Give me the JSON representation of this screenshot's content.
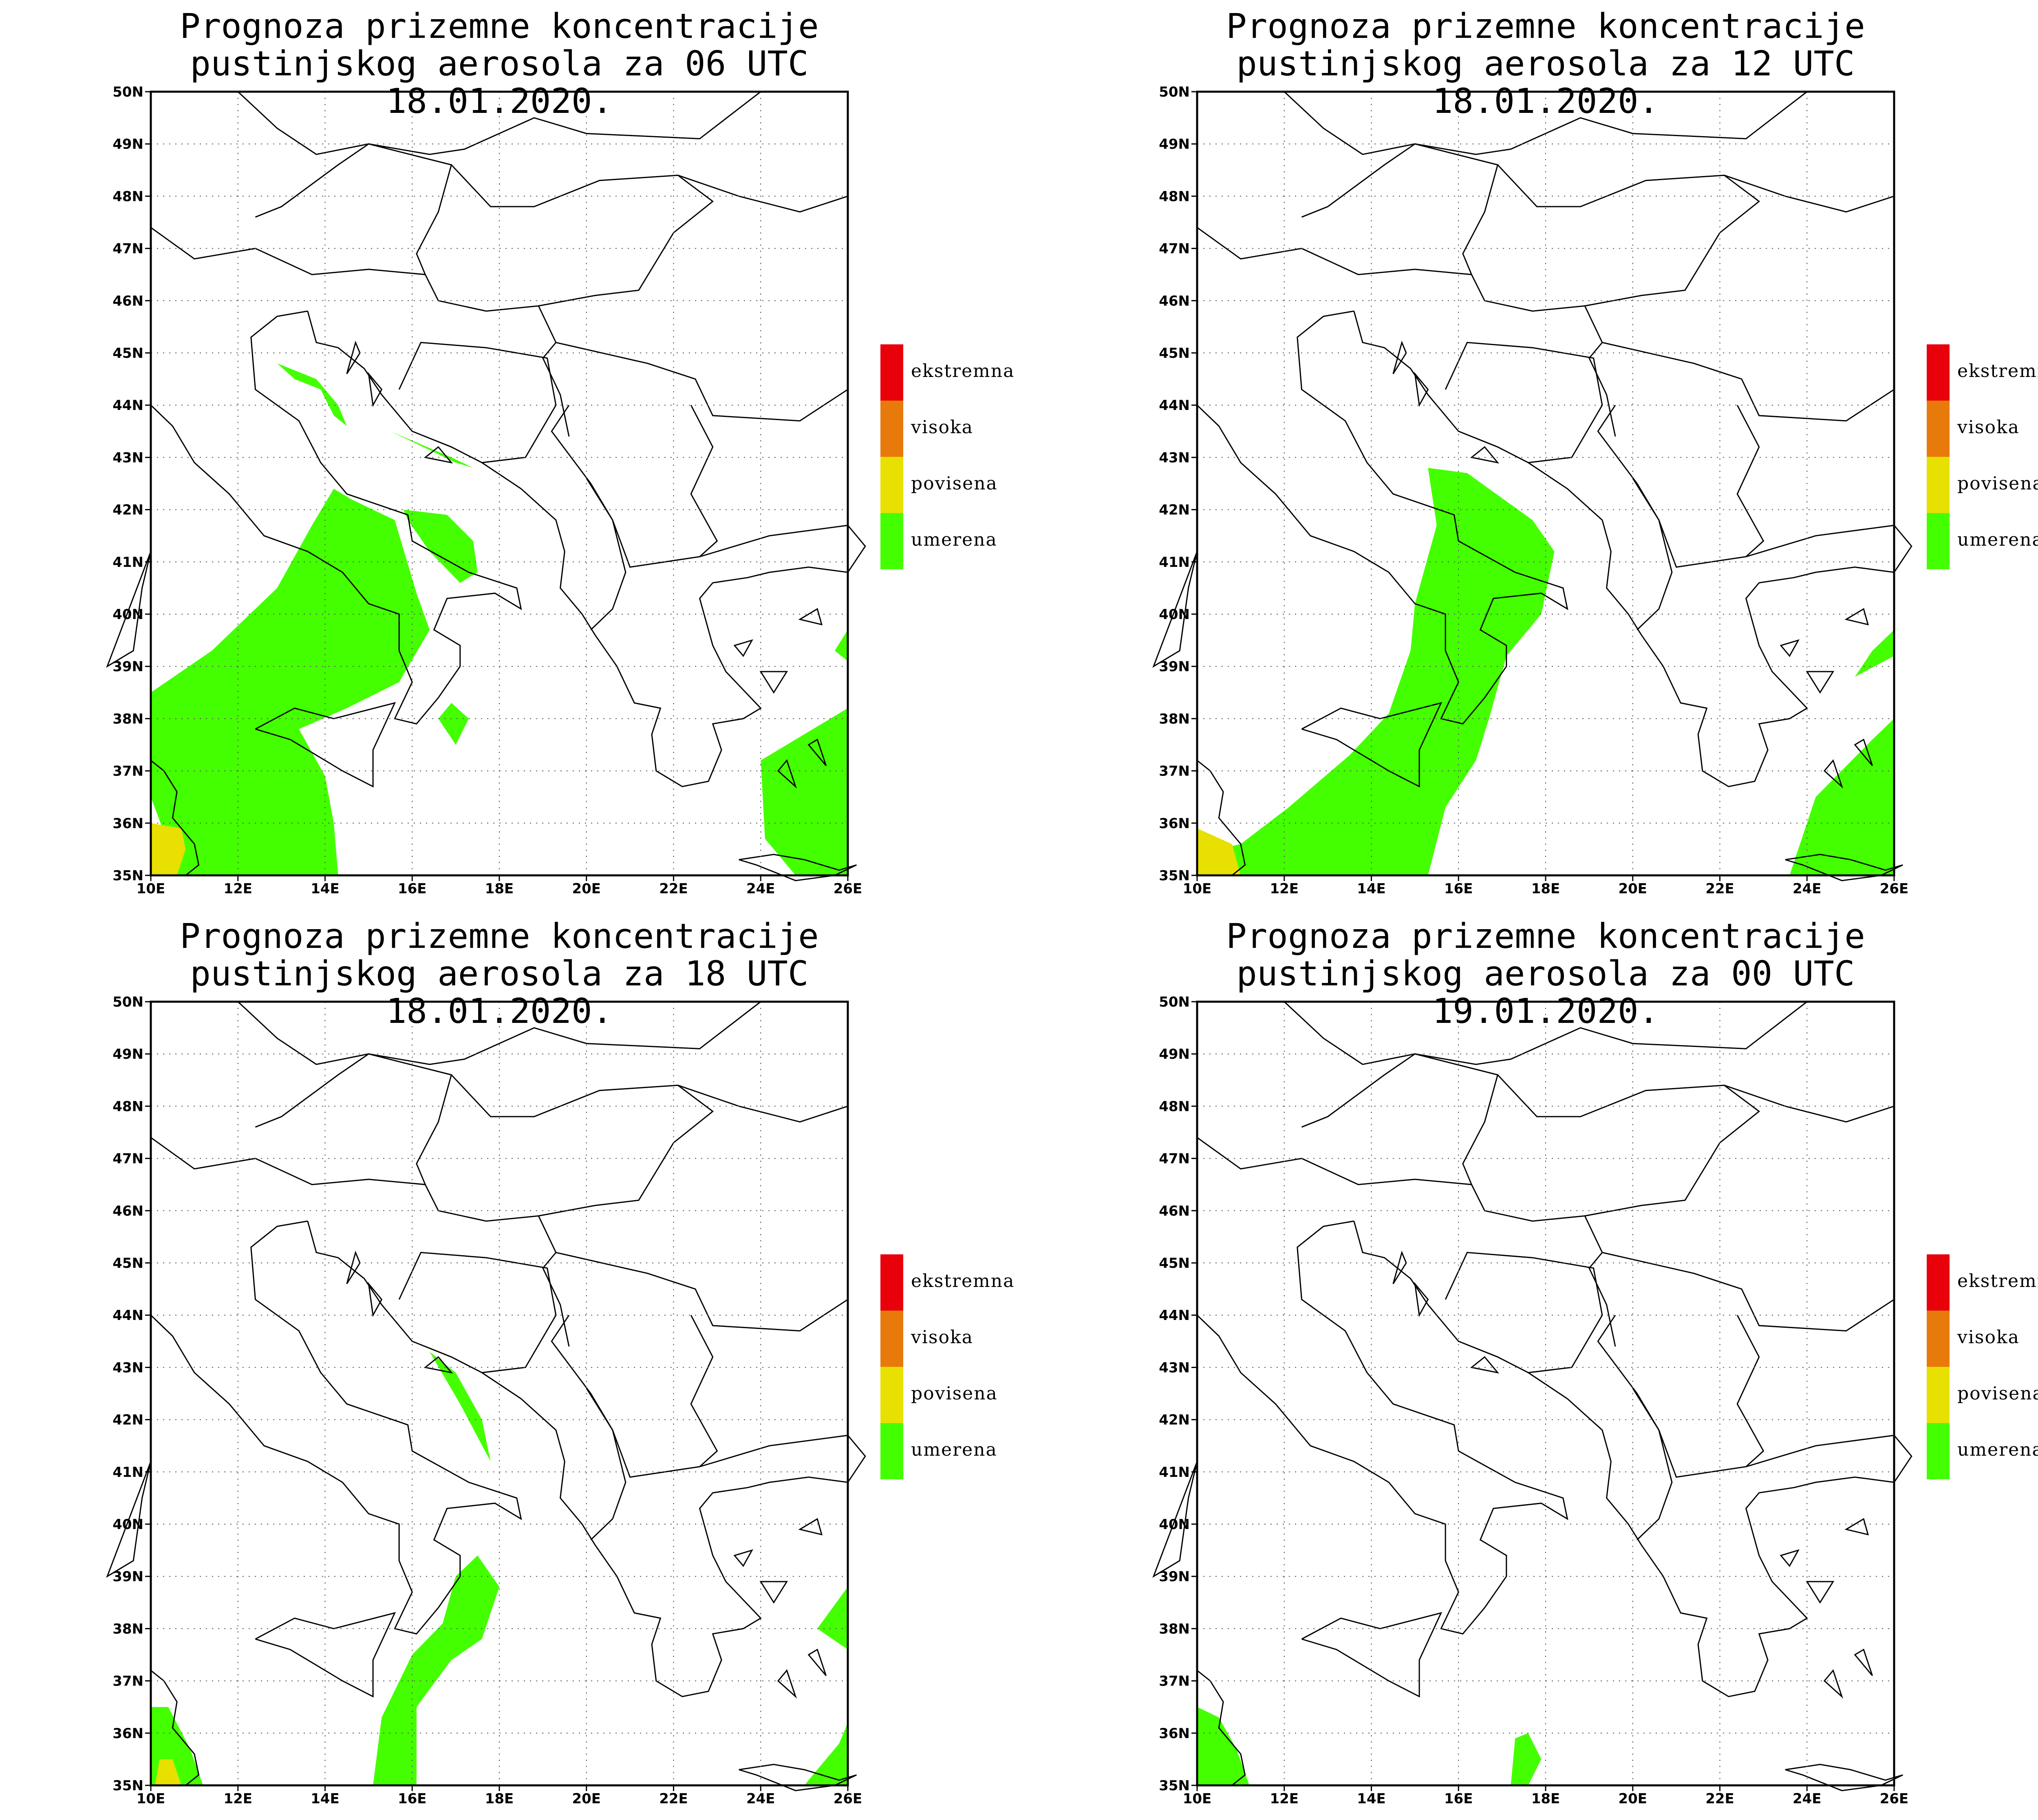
{
  "title_line1": "Prognoza prizemne koncentracije",
  "panels": [
    {
      "title_line2": "pustinjskog aerosola za 06 UTC 18.01.2020."
    },
    {
      "title_line2": "pustinjskog aerosola za 12 UTC 18.01.2020."
    },
    {
      "title_line2": "pustinjskog aerosola za 18 UTC 18.01.2020."
    },
    {
      "title_line2": "pustinjskog aerosola za 00 UTC 19.01.2020."
    }
  ],
  "lat_labels": [
    "50N",
    "49N",
    "48N",
    "47N",
    "46N",
    "45N",
    "44N",
    "43N",
    "42N",
    "41N",
    "40N",
    "39N",
    "38N",
    "37N",
    "36N",
    "35N"
  ],
  "lon_labels": [
    "10E",
    "12E",
    "14E",
    "16E",
    "18E",
    "20E",
    "22E",
    "24E",
    "26E"
  ],
  "legend": [
    {
      "label": "ekstremna",
      "color": "#e8000b"
    },
    {
      "label": "visoka",
      "color": "#e87a0b"
    },
    {
      "label": "povisena",
      "color": "#e8e000"
    },
    {
      "label": "umerena",
      "color": "#44ff00"
    }
  ],
  "colors": {
    "umerena": "#44ff00",
    "povisena": "#e8e000",
    "outline": "#000000"
  }
}
